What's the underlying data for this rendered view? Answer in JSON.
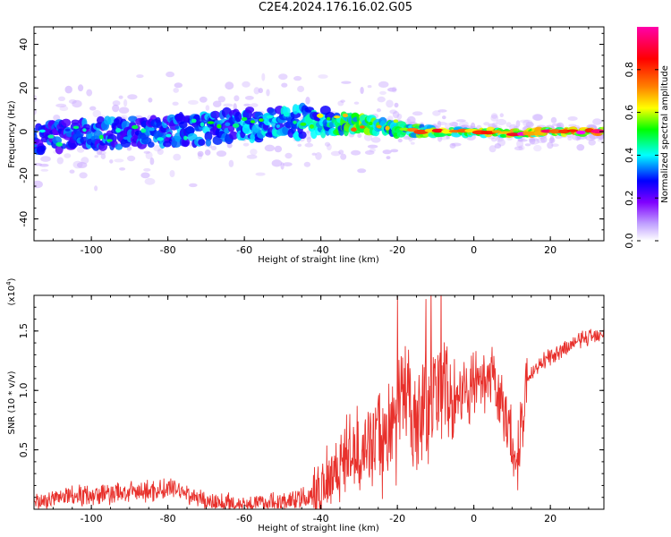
{
  "title": "C2E4.2024.176.16.02.G05",
  "chart_data": [
    {
      "type": "heatmap",
      "xlabel": "Height of straight line (km)",
      "ylabel": "Frequency (Hz)",
      "xlim": [
        -115,
        34
      ],
      "ylim": [
        -50,
        48
      ],
      "x_ticks": [
        -100,
        -80,
        -60,
        -40,
        -20,
        0,
        20
      ],
      "y_ticks": [
        -40,
        -20,
        0,
        20,
        40
      ],
      "colorbar": {
        "label": "Normalized spectral amplitude",
        "range": [
          0,
          1
        ],
        "ticks": [
          0.0,
          0.2,
          0.4,
          0.6,
          0.8
        ],
        "colormap": [
          "#ffffff",
          "#8000ff",
          "#0000ff",
          "#00ffff",
          "#00ff00",
          "#ffff00",
          "#ff8000",
          "#ff0000",
          "#ff00ff"
        ]
      },
      "ridge": {
        "x": [
          -115,
          -100,
          -80,
          -60,
          -42,
          -30,
          -20,
          -10,
          0,
          10,
          20,
          33
        ],
        "center_hz": [
          -3,
          -1,
          0,
          3,
          5,
          4,
          1,
          0,
          0,
          -1,
          0,
          0
        ],
        "halfwidth_hz": [
          8,
          8,
          8,
          9,
          8,
          4,
          4,
          2,
          2,
          2,
          1.5,
          1.5
        ],
        "amplitude": [
          0.35,
          0.4,
          0.4,
          0.45,
          0.5,
          0.7,
          0.6,
          0.75,
          0.8,
          0.85,
          0.9,
          0.9
        ]
      }
    },
    {
      "type": "line",
      "xlabel": "Height of straight line (km)",
      "ylabel": "SNR (10 * v/v)",
      "multiplier_label": "(x10",
      "multiplier_exp": "4",
      "xlim": [
        -115,
        34
      ],
      "ylim": [
        0,
        1.8
      ],
      "x_ticks": [
        -100,
        -80,
        -60,
        -40,
        -20,
        0,
        20
      ],
      "y_ticks": [
        0.5,
        1.0,
        1.5
      ],
      "y_tick_labels": [
        "0.5",
        "1.0",
        "1.5"
      ],
      "series": [
        {
          "color": "#e8312c",
          "x": [
            -115,
            -105,
            -95,
            -85,
            -78,
            -70,
            -60,
            -50,
            -42,
            -38,
            -33,
            -28,
            -24,
            -20,
            -18,
            -16,
            -13,
            -10,
            -8,
            -5,
            -2,
            0,
            3,
            5,
            8,
            10,
            11,
            14,
            18,
            22,
            26,
            30,
            34
          ],
          "y": [
            0.05,
            0.12,
            0.13,
            0.15,
            0.18,
            0.06,
            0.04,
            0.06,
            0.1,
            0.3,
            0.45,
            0.55,
            0.6,
            0.75,
            1.2,
            0.8,
            0.9,
            0.95,
            1.1,
            0.9,
            1.0,
            1.05,
            1.0,
            1.1,
            0.8,
            0.6,
            0.35,
            1.1,
            1.25,
            1.3,
            1.4,
            1.45,
            1.5
          ]
        }
      ]
    }
  ]
}
